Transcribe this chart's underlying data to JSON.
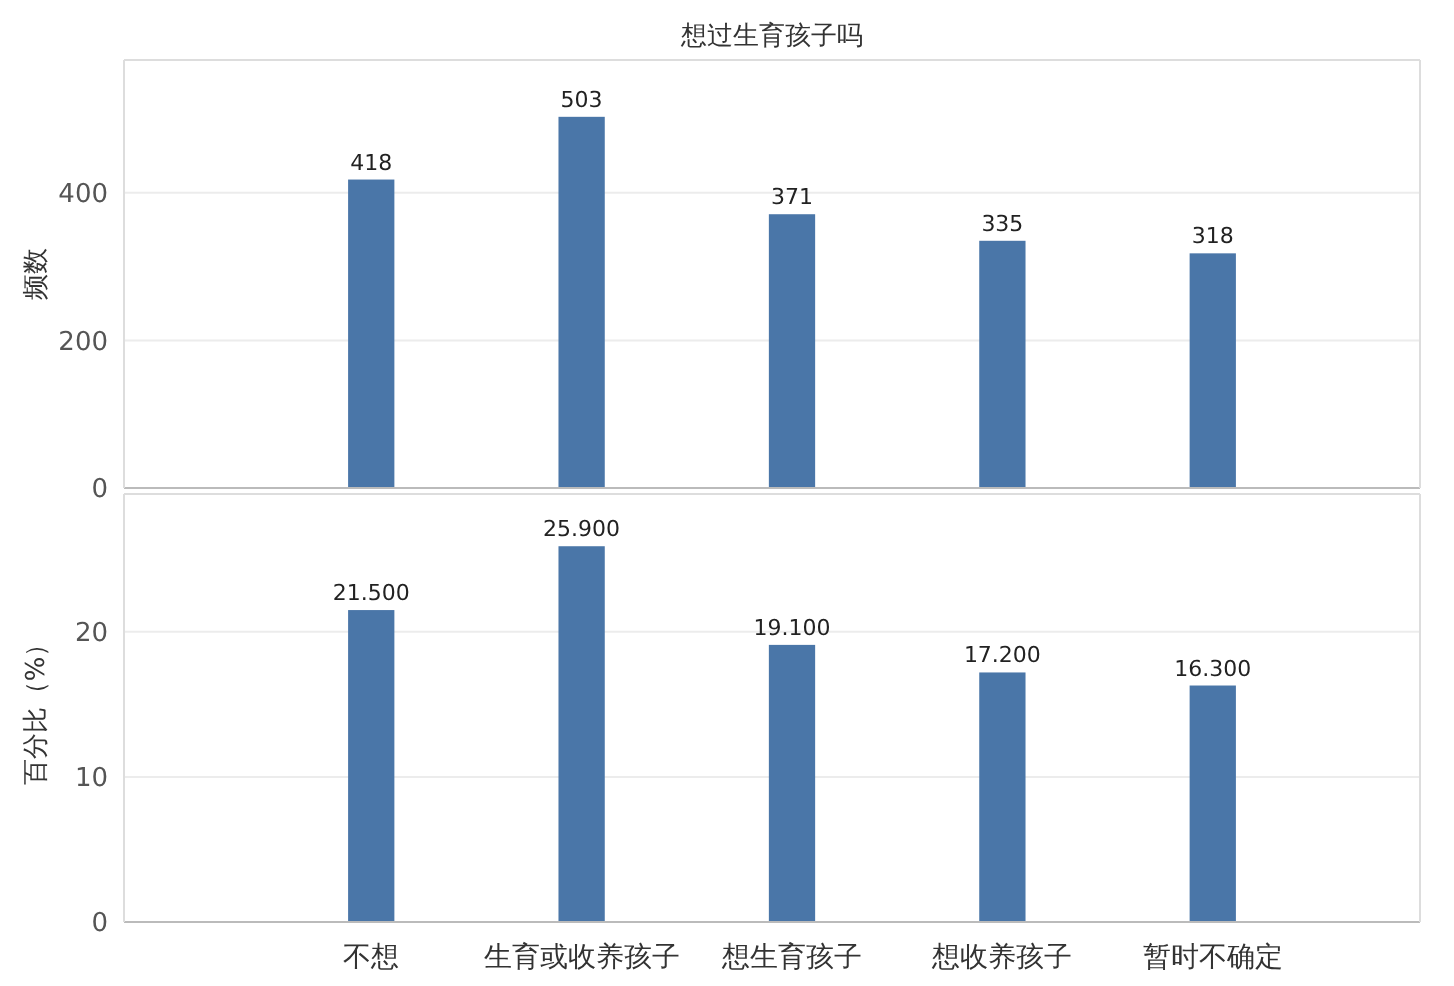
{
  "chart_data": [
    {
      "type": "bar",
      "title": "想过生育孩子吗",
      "ylabel": "频数",
      "categories": [
        null,
        null,
        null,
        null,
        null
      ],
      "series": [
        {
          "color": "#4a76a8",
          "values": [
            418,
            503,
            371,
            335,
            318
          ]
        }
      ],
      "ylim": [
        0,
        580
      ],
      "yticks": [
        0,
        200,
        400
      ],
      "grid": "y",
      "data_labels": true,
      "tick_labels": "y"
    },
    {
      "type": "bar",
      "ylabel": "百分比（%）",
      "categories": [
        "不想",
        "生育或收养孩子",
        "想生育孩子",
        "想收养孩子",
        "暂时不确定"
      ],
      "series": [
        {
          "color": "#4a76a8",
          "values": [
            21.5,
            25.9,
            19.1,
            17.2,
            16.3
          ],
          "value_labels": [
            "21.500",
            "25.900",
            "19.100",
            "17.200",
            "16.300"
          ]
        }
      ],
      "ylim": [
        0,
        29.5
      ],
      "yticks": [
        0,
        10,
        20
      ],
      "grid": "y"
    }
  ]
}
